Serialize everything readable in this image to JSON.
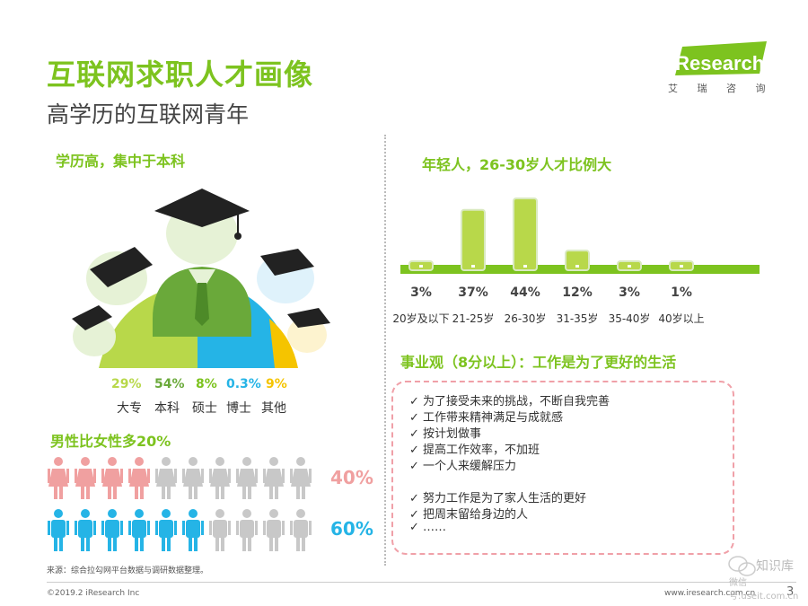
{
  "header": {
    "title": "互联网求职人才画像",
    "subtitle": "高学历的互联网青年"
  },
  "logo": {
    "brand": "iResearch",
    "sub": "艾 瑞 咨 询",
    "accent_color": "#7dc31f"
  },
  "education": {
    "title": "学历高，集中于本科",
    "items": [
      {
        "pct": "29%",
        "label": "大专",
        "color": "#b8d84a"
      },
      {
        "pct": "54%",
        "label": "本科",
        "color": "#6aa93a"
      },
      {
        "pct": "8%",
        "label": "硕士",
        "color": "#7dc31f"
      },
      {
        "pct": "0.3%",
        "label": "博士",
        "color": "#25b4e6"
      },
      {
        "pct": "9%",
        "label": "其他",
        "color": "#f5c400"
      }
    ]
  },
  "gender": {
    "title": "男性比女性多20%",
    "female_pct": "40%",
    "male_pct": "60%",
    "female_share": 0.4,
    "male_share": 0.6,
    "female_color": "#f0a0a0",
    "male_color": "#25b4e6",
    "inactive_color": "#c8c8c8"
  },
  "age": {
    "title": "年轻人，26-30岁人才比例大",
    "chart_data": {
      "type": "bar",
      "categories": [
        "20岁及以下",
        "21-25岁",
        "26-30岁",
        "31-35岁",
        "35-40岁",
        "40岁以上"
      ],
      "values": [
        3,
        37,
        44,
        12,
        3,
        1
      ],
      "labels": [
        "3%",
        "37%",
        "44%",
        "12%",
        "3%",
        "1%"
      ],
      "ylim": [
        0,
        44
      ],
      "bar_color": "#b8d84a"
    }
  },
  "career": {
    "title": "事业观（8分以上）：工作是为了更好的生活",
    "items": [
      "✓ 为了接受未来的挑战，不断自我完善",
      "✓ 工作带来精神满足与成就感",
      "✓ 按计划做事",
      "✓ 提高工作效率，不加班",
      "✓ 一个人来缓解压力",
      "✓ 努力工作是为了家人生活的更好",
      "✓ 把周末留给身边的人",
      "✓ ……"
    ]
  },
  "footer": {
    "source": "来源：综合拉勾网平台数据与调研数据整理。",
    "copyright": "©2019.2 iResearch Inc",
    "site": "www.iresearch.com.cn",
    "page": "3"
  },
  "watermark": {
    "line1": "知识库",
    "line2": "微信号:useit.com.cn"
  }
}
